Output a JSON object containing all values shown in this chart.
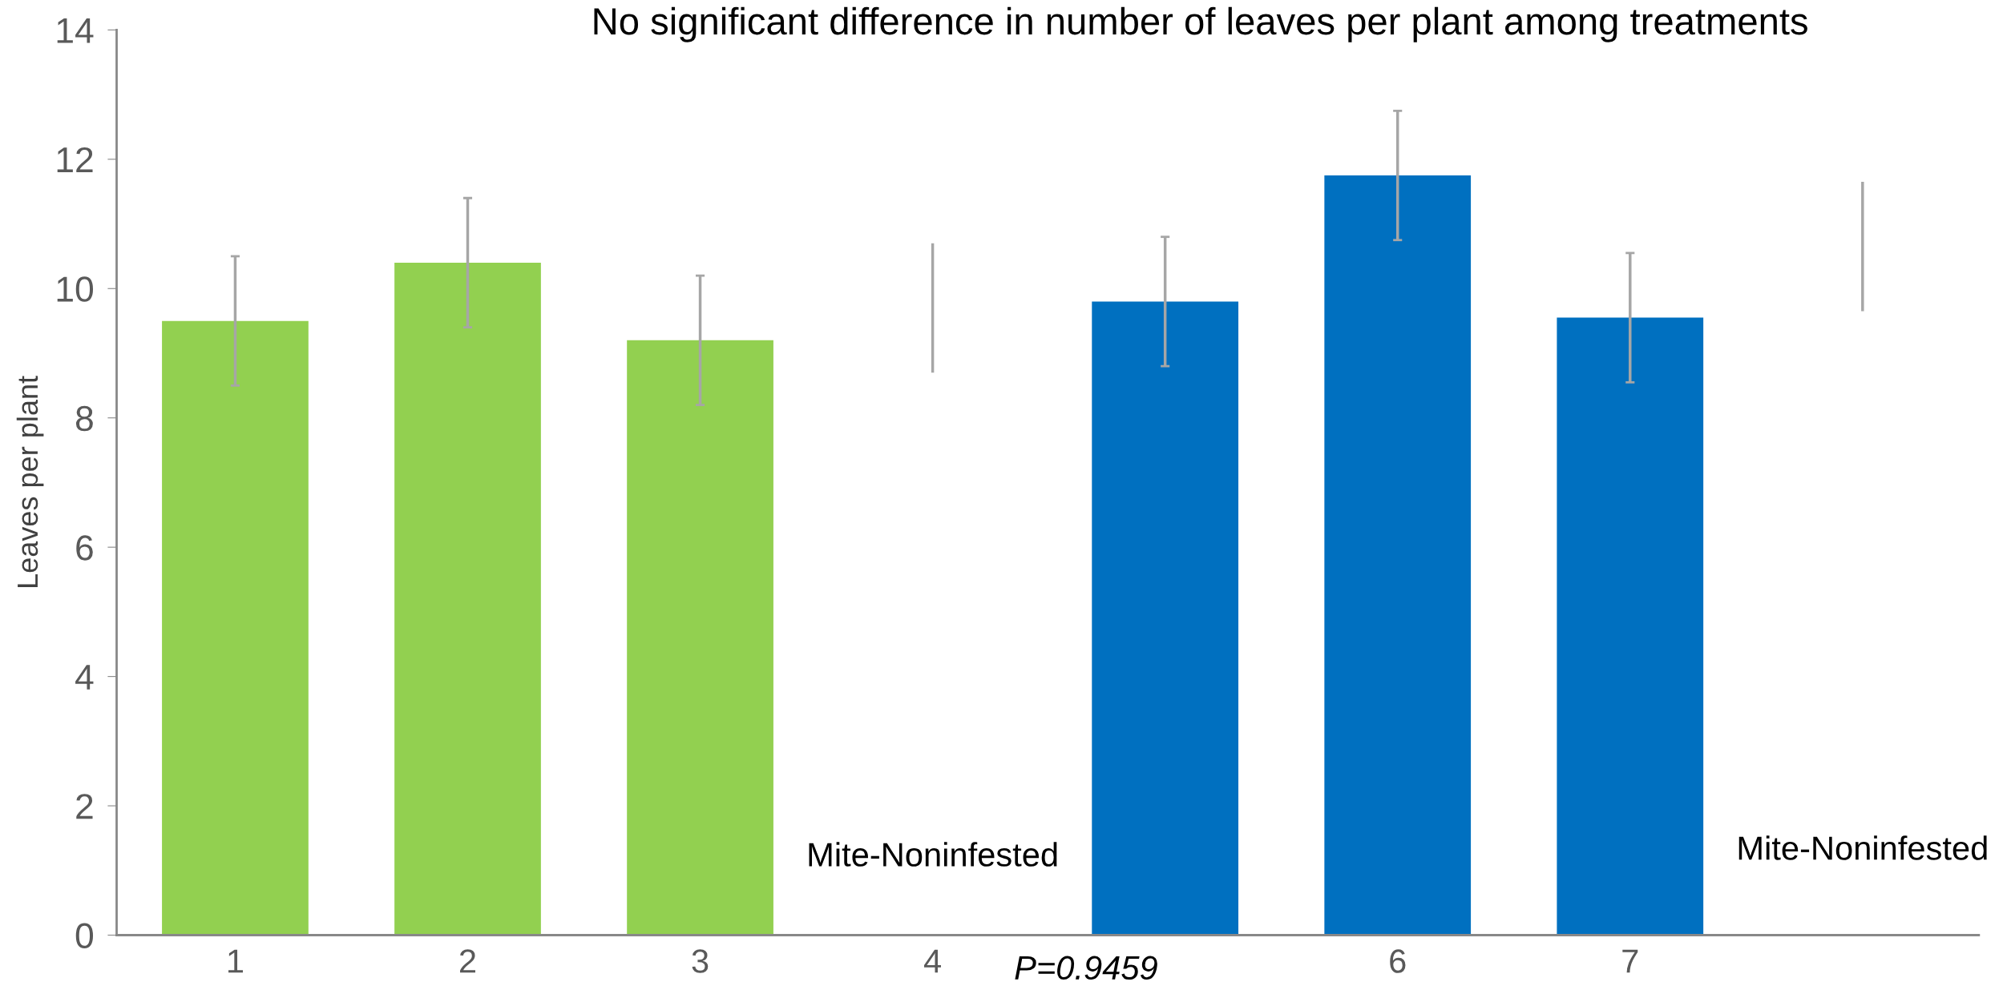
{
  "chart_data": {
    "type": "bar",
    "title": "No significant difference in number of leaves per plant among treatments",
    "ylabel": "Leaves per plant",
    "categories": [
      "1",
      "2",
      "3",
      "4",
      null,
      "6",
      "7",
      null
    ],
    "series": [
      {
        "type": "bar",
        "values": [
          9.5,
          10.4,
          9.2,
          null,
          9.8,
          11.75,
          9.55,
          null
        ],
        "errors": [
          1.0,
          1.0,
          1.0,
          null,
          1.0,
          1.0,
          1.0,
          null
        ],
        "colors": [
          "#92d050",
          "#92d050",
          "#92d050",
          "#ffffff",
          "#0070c0",
          "#0070c0",
          "#0070c0",
          "#ffffff"
        ]
      },
      {
        "type": "bar",
        "colors": [
          "#a6a6a6",
          "#a6a6a6",
          "#a6a6a6",
          "#a6a6a6",
          "#a6a6a6",
          "#a6a6a6",
          "#a6a6a6",
          "#a6a6a6"
        ],
        "base": [
          null,
          null,
          null,
          8.7,
          null,
          null,
          null,
          9.65
        ],
        "values": [
          null,
          null,
          null,
          2.0,
          null,
          null,
          null,
          2.0
        ]
      }
    ],
    "ylim": [
      0,
      14
    ],
    "yticks": [
      0,
      2,
      4,
      6,
      8,
      10,
      12,
      14
    ],
    "grid": false,
    "legend": false,
    "annotations": [
      "Mite-Noninfested",
      "Mite-Noninfested",
      "P=0.9459"
    ]
  }
}
